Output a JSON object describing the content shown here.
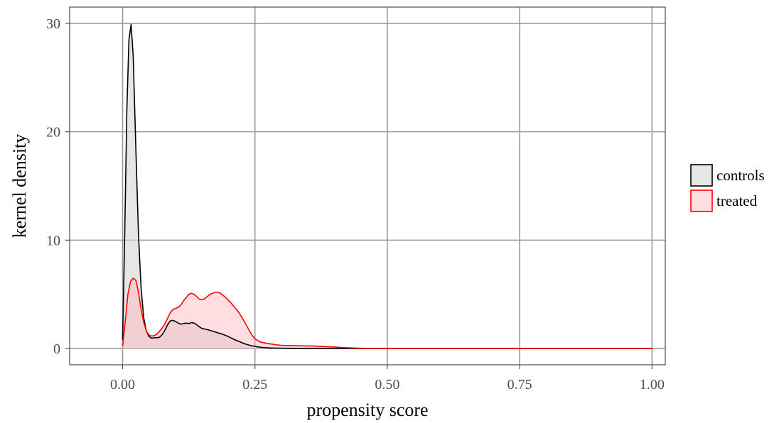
{
  "chart_data": {
    "type": "area",
    "title": "",
    "xlabel": "propensity score",
    "ylabel": "kernel density",
    "xlim": [
      -0.1,
      1.025
    ],
    "ylim": [
      -1.5,
      31.5
    ],
    "x_ticks": [
      0,
      0.25,
      0.5,
      0.75,
      1
    ],
    "x_tick_labels": [
      "0.00",
      "0.25",
      "0.50",
      "0.75",
      "1.00"
    ],
    "y_ticks": [
      0,
      10,
      20,
      30
    ],
    "y_tick_labels": [
      "0",
      "10",
      "20",
      "30"
    ],
    "grid": true,
    "legend_position": "right",
    "series": [
      {
        "name": "controls",
        "line_color": "#000000",
        "fill_color": "#d9d9d9",
        "fill_opacity": 0.65,
        "x": [
          0,
          0.004,
          0.008,
          0.012,
          0.016,
          0.02,
          0.025,
          0.03,
          0.035,
          0.04,
          0.045,
          0.05,
          0.055,
          0.06,
          0.065,
          0.07,
          0.075,
          0.08,
          0.085,
          0.09,
          0.095,
          0.1,
          0.105,
          0.11,
          0.115,
          0.12,
          0.125,
          0.13,
          0.135,
          0.14,
          0.145,
          0.15,
          0.16,
          0.17,
          0.18,
          0.19,
          0.2,
          0.21,
          0.22,
          0.23,
          0.24,
          0.25,
          0.26,
          0.27,
          0.28,
          0.3,
          0.32,
          0.35,
          0.4,
          0.45,
          0.5,
          0.6,
          0.7,
          0.8,
          0.9,
          1.0
        ],
        "y": [
          0.8,
          10.5,
          22,
          28.5,
          29.9,
          27,
          18.5,
          10.5,
          5.5,
          2.8,
          1.6,
          1.1,
          0.95,
          1.0,
          1.0,
          1.05,
          1.3,
          1.7,
          2.2,
          2.55,
          2.6,
          2.5,
          2.35,
          2.25,
          2.3,
          2.35,
          2.3,
          2.4,
          2.35,
          2.2,
          2.0,
          1.85,
          1.75,
          1.6,
          1.45,
          1.3,
          1.1,
          0.85,
          0.65,
          0.45,
          0.3,
          0.2,
          0.12,
          0.08,
          0.05,
          0.03,
          0.02,
          0.01,
          0.0,
          0.0,
          0.0,
          0.0,
          0.0,
          0.0,
          0.0,
          0.0
        ]
      },
      {
        "name": "treated",
        "line_color": "#ff0000",
        "fill_color": "#ffb3ba",
        "fill_opacity": 0.45,
        "x": [
          0,
          0.005,
          0.01,
          0.015,
          0.02,
          0.025,
          0.03,
          0.035,
          0.04,
          0.045,
          0.05,
          0.055,
          0.06,
          0.065,
          0.07,
          0.075,
          0.08,
          0.085,
          0.09,
          0.095,
          0.1,
          0.105,
          0.11,
          0.115,
          0.12,
          0.125,
          0.13,
          0.135,
          0.14,
          0.145,
          0.15,
          0.155,
          0.16,
          0.165,
          0.17,
          0.175,
          0.18,
          0.185,
          0.19,
          0.195,
          0.2,
          0.205,
          0.21,
          0.215,
          0.22,
          0.225,
          0.23,
          0.235,
          0.24,
          0.245,
          0.25,
          0.26,
          0.27,
          0.28,
          0.29,
          0.3,
          0.32,
          0.34,
          0.36,
          0.38,
          0.4,
          0.42,
          0.44,
          0.46,
          0.5,
          0.6,
          0.7,
          0.8,
          0.9,
          1.0
        ],
        "y": [
          0.2,
          2.5,
          5.0,
          6.2,
          6.5,
          6.3,
          5.2,
          3.6,
          2.4,
          1.6,
          1.25,
          1.15,
          1.2,
          1.35,
          1.6,
          1.9,
          2.3,
          2.8,
          3.3,
          3.6,
          3.7,
          3.8,
          4.0,
          4.4,
          4.7,
          5.0,
          5.1,
          5.0,
          4.8,
          4.55,
          4.5,
          4.6,
          4.8,
          5.0,
          5.1,
          5.2,
          5.2,
          5.1,
          4.9,
          4.7,
          4.45,
          4.2,
          3.9,
          3.6,
          3.3,
          2.9,
          2.5,
          2.05,
          1.6,
          1.2,
          0.9,
          0.6,
          0.5,
          0.42,
          0.35,
          0.3,
          0.27,
          0.25,
          0.23,
          0.18,
          0.14,
          0.08,
          0.04,
          0.01,
          0.0,
          0.0,
          0.0,
          0.0,
          0.0,
          0.0
        ]
      }
    ]
  }
}
